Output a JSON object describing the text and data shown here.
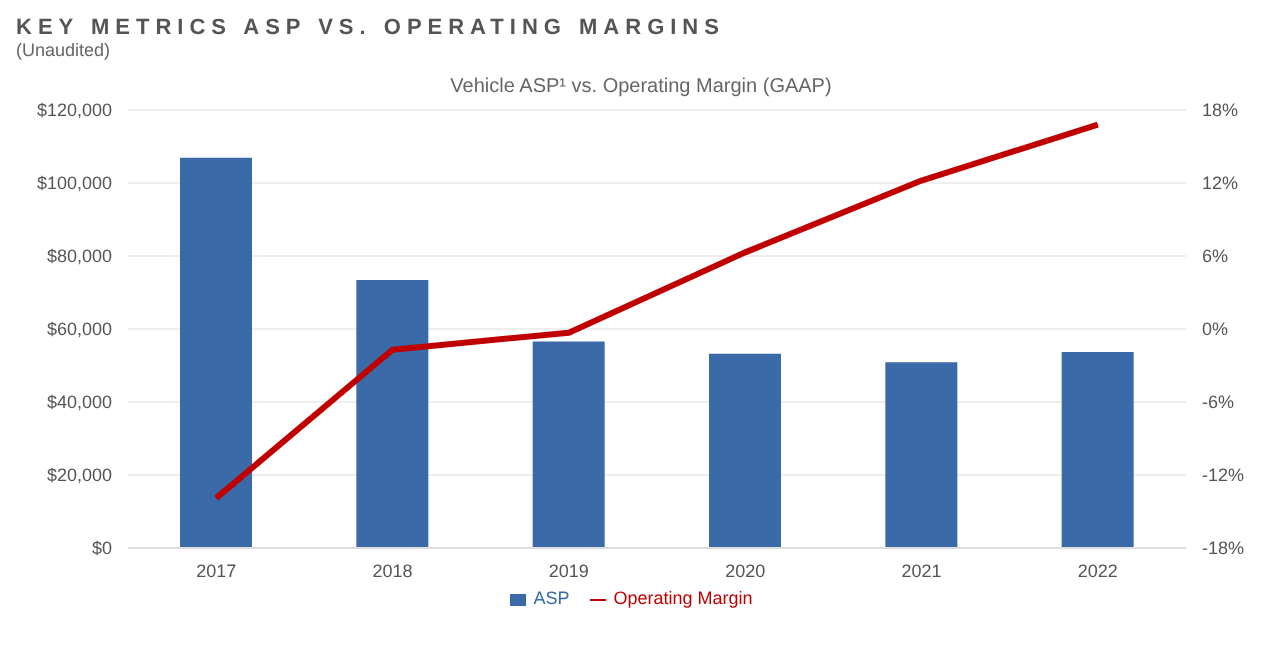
{
  "chart_data": {
    "type": "bar",
    "title": "KEY METRICS ASP VS. OPERATING MARGINS",
    "subtitle": "(Unaudited)",
    "annotations": [
      "Vehicle ASP¹ vs. Operating Margin (GAAP)"
    ],
    "categories": [
      "2017",
      "2018",
      "2019",
      "2020",
      "2021",
      "2022"
    ],
    "series": [
      {
        "name": "ASP",
        "color": "#3a6aa8",
        "values": [
          106900,
          73400,
          56600,
          53200,
          50900,
          53700
        ]
      },
      {
        "name": "Operating Margin",
        "type": "line",
        "axis": "y2",
        "color": "#c00000",
        "values": [
          -13.9,
          -1.7,
          -0.3,
          6.3,
          12.2,
          16.8
        ]
      }
    ],
    "ylim": [
      0,
      120000
    ],
    "yticks": [
      {
        "value": 0,
        "label": "$0"
      },
      {
        "value": 20000,
        "label": "$20,000"
      },
      {
        "value": 40000,
        "label": "$40,000"
      },
      {
        "value": 60000,
        "label": "$60,000"
      },
      {
        "value": 80000,
        "label": "$80,000"
      },
      {
        "value": 100000,
        "label": "$100,000"
      },
      {
        "value": 120000,
        "label": "$120,000"
      }
    ],
    "y2lim": [
      -18,
      18
    ],
    "y2ticks": [
      {
        "value": -18,
        "label": "-18%"
      },
      {
        "value": -12,
        "label": "-12%"
      },
      {
        "value": -6,
        "label": "-6%"
      },
      {
        "value": 0,
        "label": "0%"
      },
      {
        "value": 6,
        "label": "6%"
      },
      {
        "value": 12,
        "label": "12%"
      },
      {
        "value": 18,
        "label": "18%"
      }
    ],
    "grid": "y",
    "legend": "bottom",
    "marker": "none",
    "line_style": "solid"
  }
}
